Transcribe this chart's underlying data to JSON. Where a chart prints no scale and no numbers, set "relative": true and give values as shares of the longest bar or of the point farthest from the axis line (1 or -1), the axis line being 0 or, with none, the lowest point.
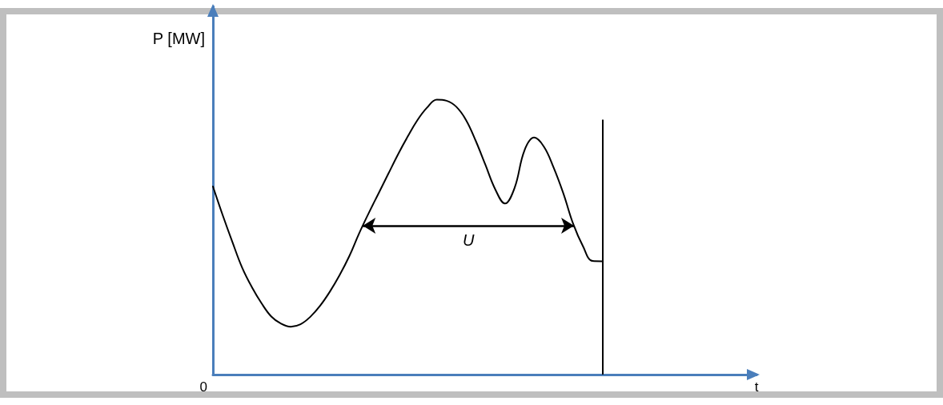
{
  "chart_data": {
    "type": "line",
    "relative": true,
    "ylabel": "P [MW]",
    "categories": [
      null,
      null,
      null,
      null,
      null,
      null,
      null,
      null,
      null,
      null,
      null,
      null,
      null,
      null,
      null,
      null,
      null,
      null,
      null,
      null,
      null,
      null,
      null,
      null,
      null,
      null,
      null,
      null,
      null,
      null,
      null,
      null,
      null,
      null,
      null,
      null,
      null,
      null,
      null,
      null,
      null
    ],
    "values": [
      0.684,
      0.58,
      0.482,
      0.389,
      0.318,
      0.259,
      0.211,
      0.185,
      0.174,
      0.183,
      0.21,
      0.25,
      0.301,
      0.361,
      0.43,
      0.512,
      0.587,
      0.658,
      0.729,
      0.8,
      0.865,
      0.925,
      0.971,
      1,
      0.996,
      0.974,
      0.926,
      0.85,
      0.762,
      0.674,
      0.622,
      0.68,
      0.815,
      0.862,
      0.829,
      0.753,
      0.659,
      0.549,
      0.468,
      0.413,
      0.412
    ],
    "color": "#000000",
    "annotations": [
      "U",
      "0",
      "t"
    ]
  }
}
